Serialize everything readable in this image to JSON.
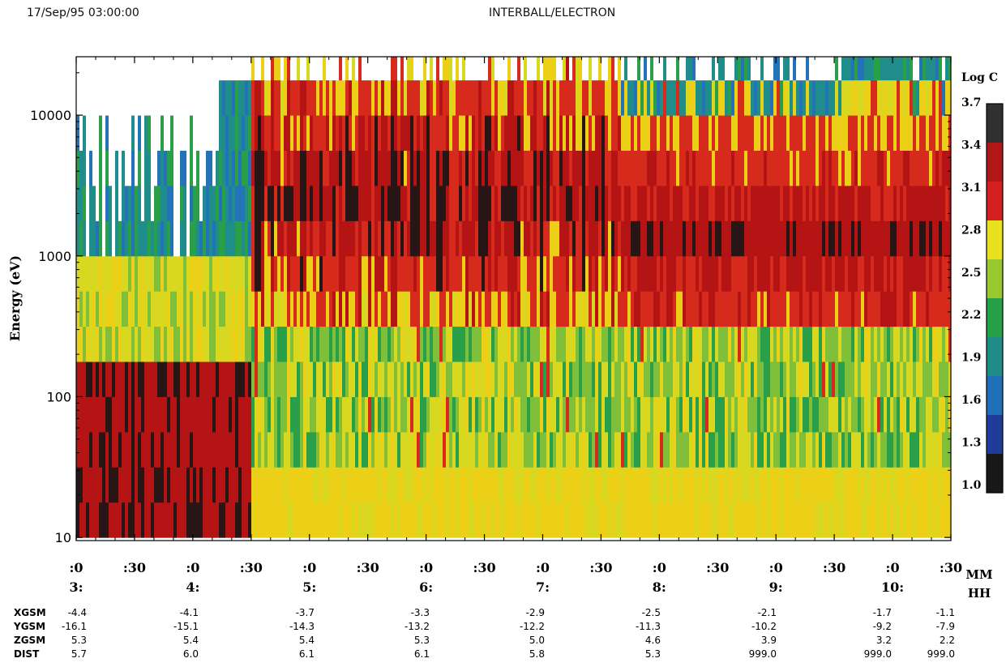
{
  "header": {
    "date": "17/Sep/95 03:00:00",
    "title": "INTERBALL/ELECTRON"
  },
  "chart_data": {
    "type": "heatmap",
    "title": "INTERBALL/ELECTRON",
    "ylabel": "Energy (eV)",
    "y_scale": "log",
    "ylim": [
      9.5,
      26000
    ],
    "y_ticks": [
      {
        "value": 10,
        "label": "10"
      },
      {
        "value": 100,
        "label": "100"
      },
      {
        "value": 1000,
        "label": "1000"
      },
      {
        "value": 10000,
        "label": "10000"
      }
    ],
    "x_ticks": [
      {
        "mm": ":0",
        "hh": "3:"
      },
      {
        "mm": ":30",
        "hh": ""
      },
      {
        "mm": ":0",
        "hh": "4:"
      },
      {
        "mm": ":30",
        "hh": ""
      },
      {
        "mm": ":0",
        "hh": "5:"
      },
      {
        "mm": ":30",
        "hh": ""
      },
      {
        "mm": ":0",
        "hh": "6:"
      },
      {
        "mm": ":30",
        "hh": ""
      },
      {
        "mm": ":0",
        "hh": "7:"
      },
      {
        "mm": ":30",
        "hh": ""
      },
      {
        "mm": ":0",
        "hh": "8:"
      },
      {
        "mm": ":30",
        "hh": ""
      },
      {
        "mm": ":0",
        "hh": "9:"
      },
      {
        "mm": ":30",
        "hh": ""
      },
      {
        "mm": ":0",
        "hh": "10:"
      },
      {
        "mm": ":30",
        "hh": ""
      }
    ],
    "x_unit_labels": [
      "MM",
      "HH"
    ],
    "colorbar": {
      "label": "Log C",
      "ticks": [
        "3.7",
        "3.4",
        "3.1",
        "2.8",
        "2.5",
        "2.2",
        "1.9",
        "1.6",
        "1.3",
        "1.0"
      ],
      "colors": [
        "#303030",
        "#b01818",
        "#d22020",
        "#e8e020",
        "#98c830",
        "#28a048",
        "#208c88",
        "#2070b8",
        "#203c98",
        "#181818"
      ]
    },
    "orbit_table": {
      "rows": [
        {
          "name": "XGSM",
          "values": [
            "-4.4",
            "-4.1",
            "-3.7",
            "-3.3",
            "-2.9",
            "-2.5",
            "-2.1",
            "-1.7",
            "-1.1"
          ]
        },
        {
          "name": "YGSM",
          "values": [
            "-16.1",
            "-15.1",
            "-14.3",
            "-13.2",
            "-12.2",
            "-11.3",
            "-10.2",
            "-9.2",
            "-7.9"
          ]
        },
        {
          "name": "ZGSM",
          "values": [
            "5.3",
            "5.4",
            "5.4",
            "5.3",
            "5.0",
            "4.6",
            "3.9",
            "3.2",
            "2.2"
          ]
        },
        {
          "name": "DIST",
          "values": [
            "5.7",
            "6.0",
            "6.1",
            "6.1",
            "5.8",
            "5.3",
            "999.0",
            "999.0",
            "999.0"
          ]
        }
      ]
    }
  }
}
